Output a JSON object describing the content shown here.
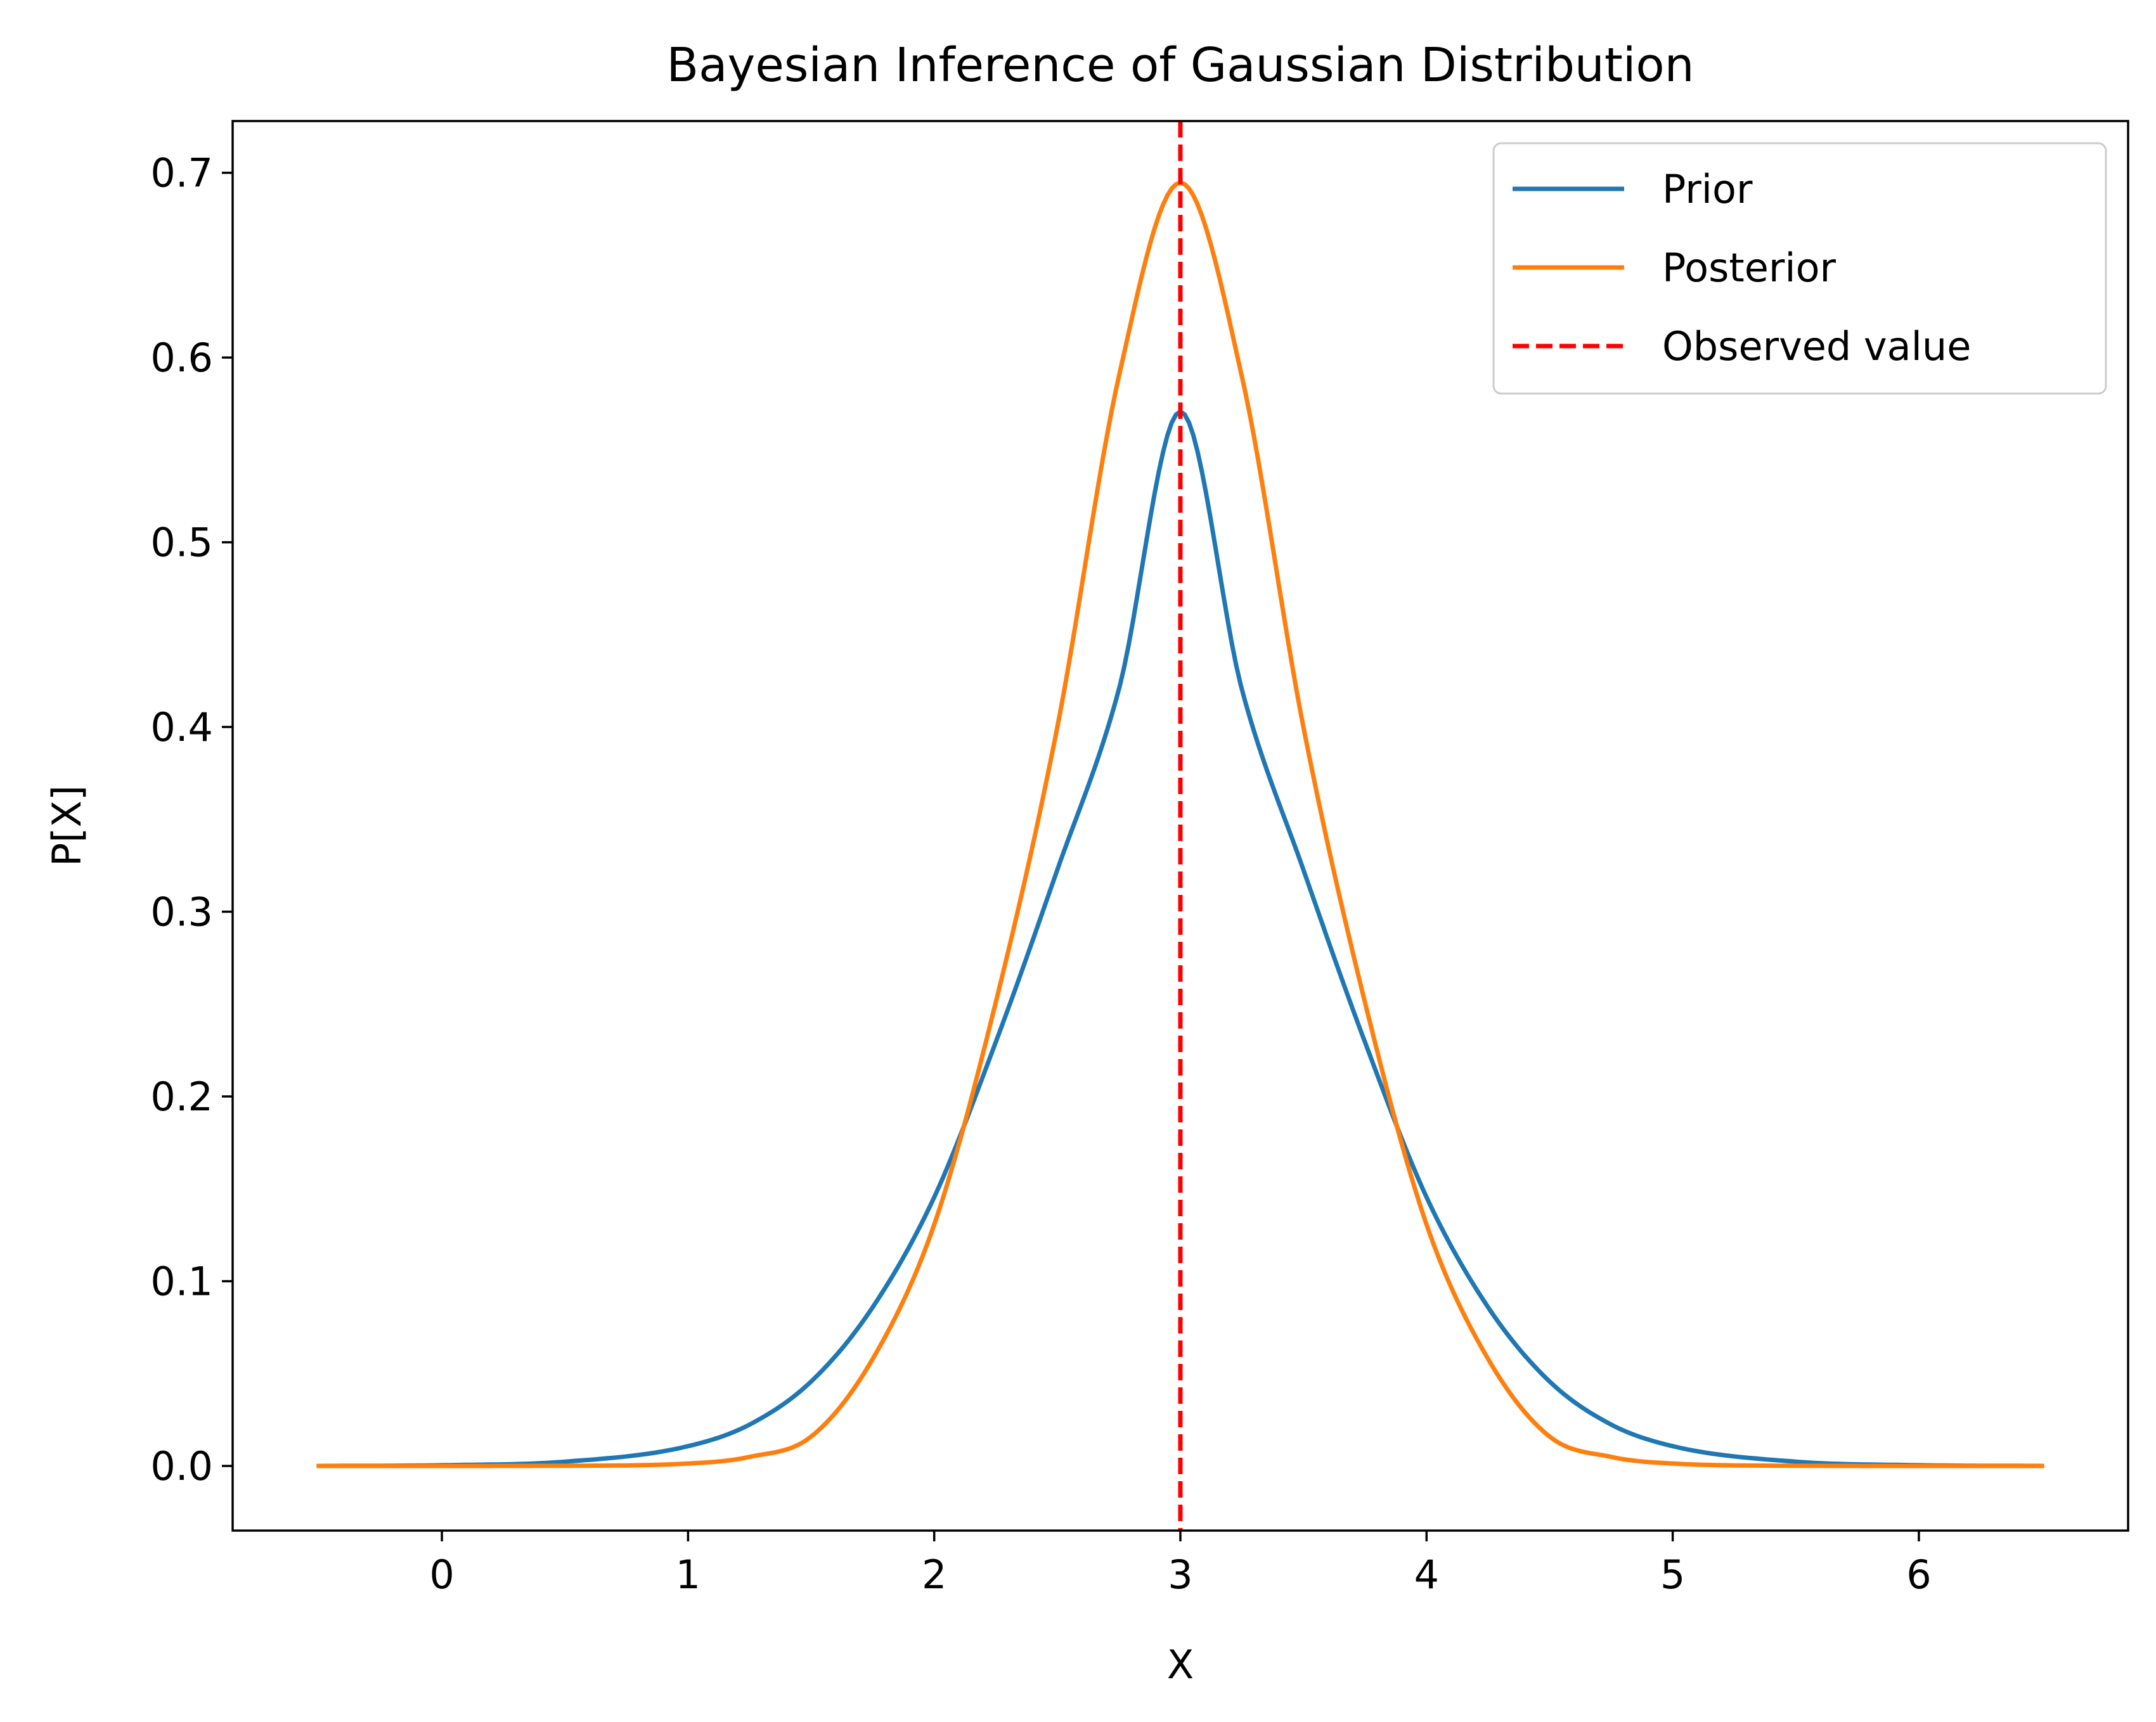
{
  "chart_data": {
    "type": "line",
    "title": "Bayesian Inference of Gaussian Distribution",
    "xlabel": "X",
    "ylabel": "P[X]",
    "xlim": [
      -0.85,
      6.85
    ],
    "ylim": [
      -0.035,
      0.728
    ],
    "xticks": [
      0,
      1,
      2,
      3,
      4,
      5,
      6
    ],
    "xtick_labels": [
      "0",
      "1",
      "2",
      "3",
      "4",
      "5",
      "6"
    ],
    "yticks": [
      0.0,
      0.1,
      0.2,
      0.3,
      0.4,
      0.5,
      0.6,
      0.7
    ],
    "ytick_labels": [
      "0.0",
      "0.1",
      "0.2",
      "0.3",
      "0.4",
      "0.5",
      "0.6",
      "0.7"
    ],
    "grid": false,
    "legend_position": "top-right",
    "series": [
      {
        "name": "Prior",
        "color": "#1f77b4",
        "x": [
          -0.5,
          0.0,
          0.5,
          1.0,
          1.25,
          1.5,
          1.75,
          2.0,
          2.25,
          2.5,
          2.75,
          3.0,
          3.25,
          3.5,
          3.75,
          4.0,
          4.25,
          4.5,
          4.75,
          5.0,
          5.5,
          6.0,
          6.5
        ],
        "values": [
          0.0,
          0.0004,
          0.0023,
          0.0107,
          0.0224,
          0.0457,
          0.0859,
          0.1455,
          0.2294,
          0.3226,
          0.4203,
          0.5707,
          0.4203,
          0.3226,
          0.2294,
          0.1455,
          0.0859,
          0.0457,
          0.0224,
          0.0107,
          0.0023,
          0.0004,
          0.0
        ]
      },
      {
        "name": "Posterior",
        "color": "#ff7f0e",
        "x": [
          -0.5,
          0.0,
          0.5,
          1.0,
          1.25,
          1.5,
          1.75,
          2.0,
          2.25,
          2.5,
          2.75,
          3.0,
          3.25,
          3.5,
          3.75,
          4.0,
          4.25,
          4.5,
          4.75,
          5.0,
          5.5,
          6.0,
          6.5
        ],
        "values": [
          0.0,
          0.0,
          0.0001,
          0.0013,
          0.0049,
          0.0159,
          0.0579,
          0.1307,
          0.2509,
          0.3998,
          0.5897,
          0.6946,
          0.5897,
          0.3998,
          0.2509,
          0.1307,
          0.0579,
          0.0159,
          0.0049,
          0.0013,
          0.0001,
          0.0,
          0.0
        ]
      },
      {
        "name": "Observed value",
        "color": "#ff0000",
        "style": "dashed",
        "vertical_line_x": 3.0
      }
    ]
  }
}
